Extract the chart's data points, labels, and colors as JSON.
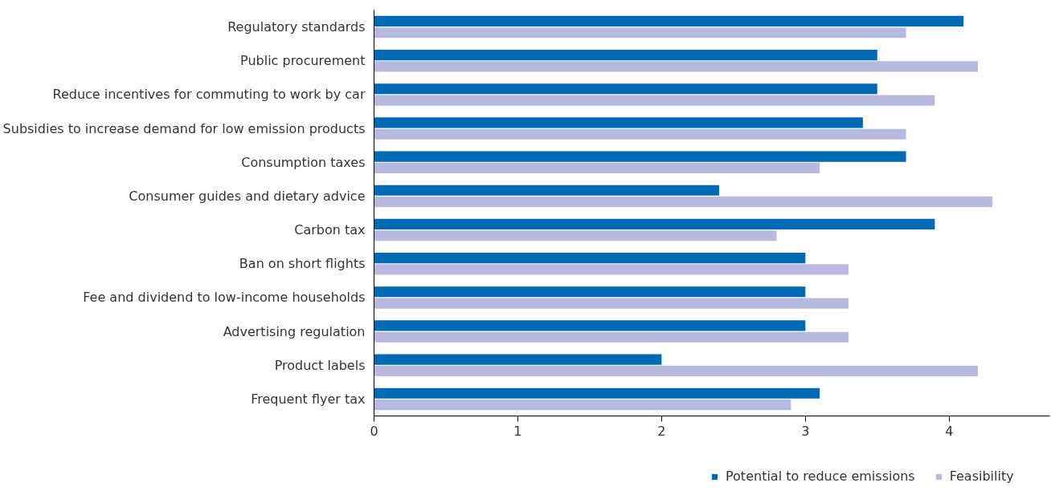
{
  "chart_data": {
    "type": "bar",
    "orientation": "horizontal",
    "categories": [
      "Regulatory standards",
      "Public procurement",
      "Reduce incentives for commuting to work by car",
      "Subsidies to increase demand for low emission products",
      "Consumption taxes",
      "Consumer guides and dietary advice",
      "Carbon tax",
      "Ban on short flights",
      "Fee and dividend to low-income households",
      "Advertising regulation",
      "Product labels",
      "Frequent flyer tax"
    ],
    "series": [
      {
        "name": "Potential to reduce emissions",
        "color": "#0069b4",
        "values": [
          4.1,
          3.5,
          3.5,
          3.4,
          3.7,
          2.4,
          3.9,
          3.0,
          3.0,
          3.0,
          2.0,
          3.1
        ]
      },
      {
        "name": "Feasibility",
        "color": "#b8b9e0",
        "values": [
          3.7,
          4.2,
          3.9,
          3.7,
          3.1,
          4.3,
          2.8,
          3.3,
          3.3,
          3.3,
          4.2,
          2.9
        ]
      }
    ],
    "xlim": [
      0,
      4.7
    ],
    "xticks": [
      0,
      1,
      2,
      3,
      4
    ],
    "grid": false,
    "legend": "bottom"
  }
}
